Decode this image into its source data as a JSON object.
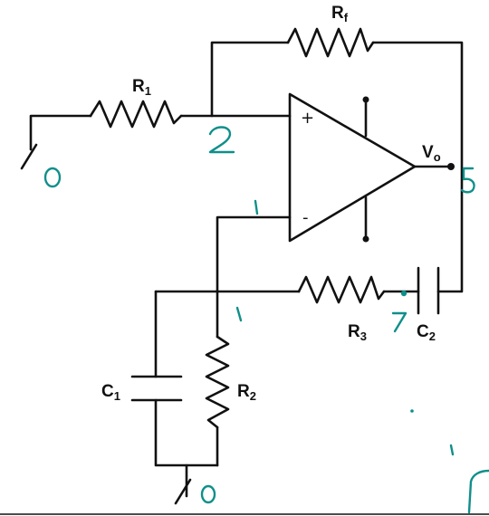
{
  "components": {
    "r1": {
      "label": "R",
      "sub": "1"
    },
    "rf": {
      "label": "R",
      "sub": "f"
    },
    "r2": {
      "label": "R",
      "sub": "2"
    },
    "r3": {
      "label": "R",
      "sub": "3"
    },
    "c1": {
      "label": "C",
      "sub": "1"
    },
    "c2": {
      "label": "C",
      "sub": "2"
    },
    "vo": {
      "label": "V",
      "sub": "o"
    }
  },
  "opamp": {
    "plus": "+",
    "minus": "-"
  },
  "colors": {
    "wire": "#111111",
    "annotation": "#0f8f8a"
  },
  "annotations": [
    "0",
    "2",
    "1",
    "1",
    "5",
    "7",
    "0"
  ]
}
